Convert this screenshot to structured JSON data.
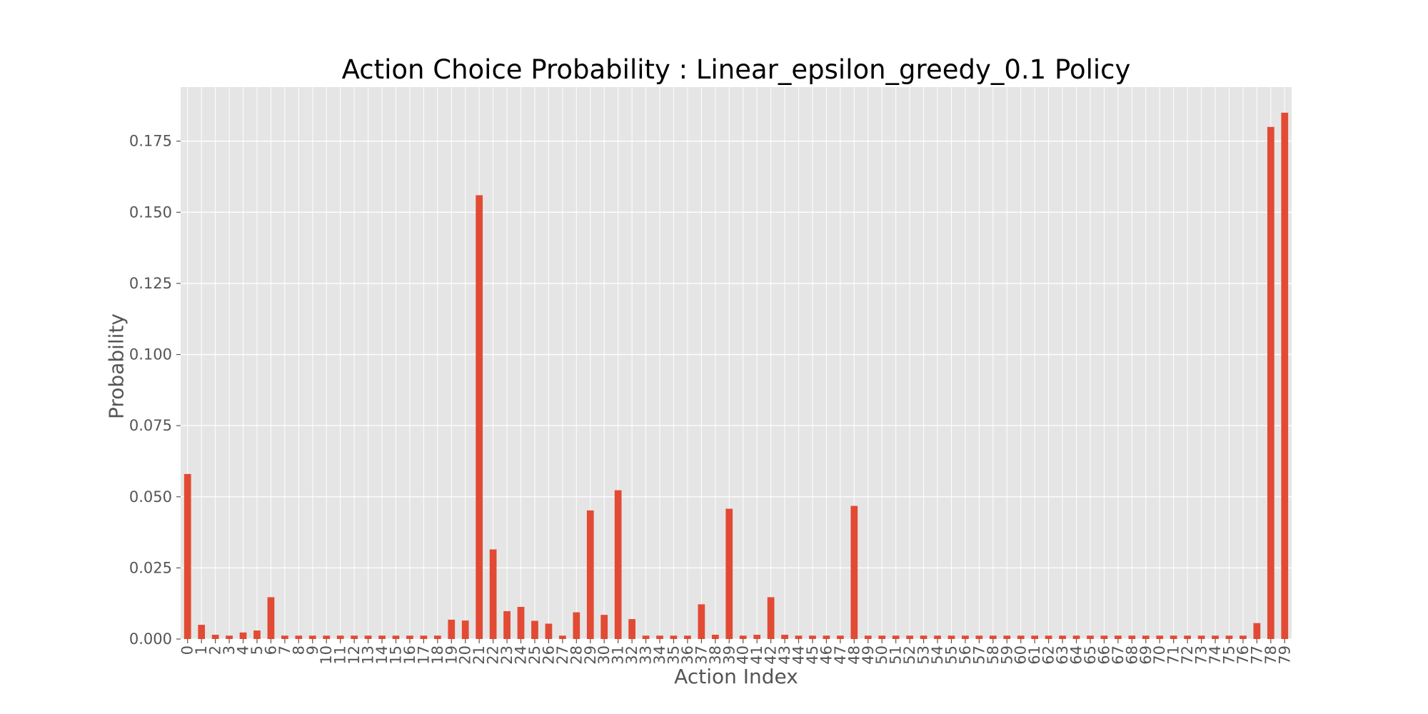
{
  "chart_data": {
    "type": "bar",
    "title": "Action Choice Probability : Linear_epsilon_greedy_0.1 Policy",
    "xlabel": "Action Index",
    "ylabel": "Probability",
    "categories": [
      "0",
      "1",
      "2",
      "3",
      "4",
      "5",
      "6",
      "7",
      "8",
      "9",
      "10",
      "11",
      "12",
      "13",
      "14",
      "15",
      "16",
      "17",
      "18",
      "19",
      "20",
      "21",
      "22",
      "23",
      "24",
      "25",
      "26",
      "27",
      "28",
      "29",
      "30",
      "31",
      "32",
      "33",
      "34",
      "35",
      "36",
      "37",
      "38",
      "39",
      "40",
      "41",
      "42",
      "43",
      "44",
      "45",
      "46",
      "47",
      "48",
      "49",
      "50",
      "51",
      "52",
      "53",
      "54",
      "55",
      "56",
      "57",
      "58",
      "59",
      "60",
      "61",
      "62",
      "63",
      "64",
      "65",
      "66",
      "67",
      "68",
      "69",
      "70",
      "71",
      "72",
      "73",
      "74",
      "75",
      "76",
      "77",
      "78",
      "79"
    ],
    "values": [
      0.058,
      0.005,
      0.0015,
      0.0012,
      0.0023,
      0.003,
      0.0147,
      0.0012,
      0.0012,
      0.0012,
      0.0012,
      0.0012,
      0.0012,
      0.0012,
      0.0012,
      0.0012,
      0.0012,
      0.0012,
      0.0012,
      0.0068,
      0.0065,
      0.156,
      0.0315,
      0.0098,
      0.0113,
      0.0064,
      0.0054,
      0.0012,
      0.0094,
      0.0452,
      0.0085,
      0.0523,
      0.007,
      0.0012,
      0.0012,
      0.0012,
      0.0012,
      0.0122,
      0.0015,
      0.0458,
      0.0012,
      0.0015,
      0.0147,
      0.0015,
      0.0012,
      0.0012,
      0.0012,
      0.0012,
      0.0468,
      0.0012,
      0.0012,
      0.0012,
      0.0012,
      0.0012,
      0.0012,
      0.0012,
      0.0012,
      0.0012,
      0.0012,
      0.0012,
      0.0012,
      0.0012,
      0.0012,
      0.0012,
      0.0012,
      0.0012,
      0.0012,
      0.0012,
      0.0012,
      0.0012,
      0.0012,
      0.0012,
      0.0012,
      0.0012,
      0.0012,
      0.0012,
      0.0012,
      0.0056,
      0.18,
      0.185
    ],
    "yticks": [
      "0.000",
      "0.025",
      "0.050",
      "0.075",
      "0.100",
      "0.125",
      "0.150",
      "0.175"
    ],
    "ylim": [
      0,
      0.194
    ],
    "grid": true,
    "colors": {
      "bar": "#E24A33",
      "plot_bg": "#E5E5E5",
      "grid": "#FFFFFF",
      "tick_text": "#555555",
      "title_text": "#000000"
    }
  }
}
